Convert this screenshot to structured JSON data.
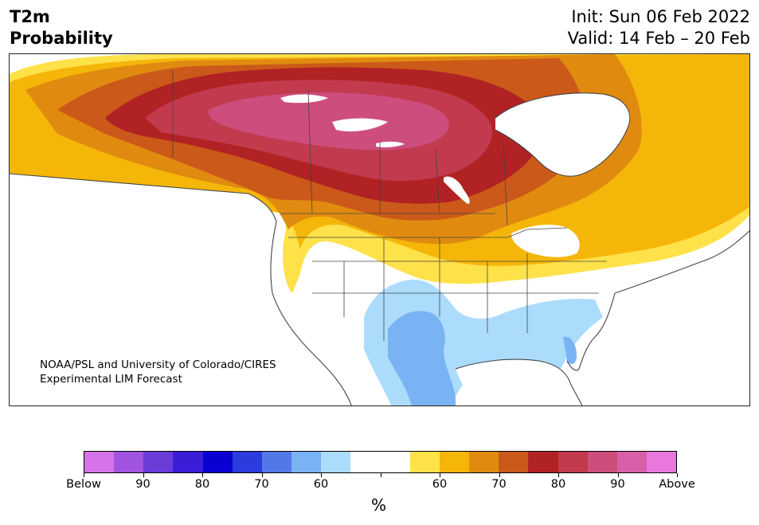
{
  "header": {
    "title_line1": "T2m",
    "title_line2": "Probability",
    "init": "Init: Sun 06 Feb 2022",
    "valid": "Valid: 14 Feb – 20 Feb"
  },
  "map": {
    "credit_line1": "NOAA/PSL and University of Colorado/CIRES",
    "credit_line2": "Experimental LIM Forecast",
    "region": "North America",
    "categories_shown": {
      "above": [
        "60",
        "70",
        "80",
        "90"
      ],
      "below": [
        "60",
        "70"
      ]
    }
  },
  "colorbar": {
    "colors": [
      "#d673e8",
      "#a054e0",
      "#6a3cd8",
      "#3a1dd6",
      "#0a00d2",
      "#2a3cdc",
      "#5277e6",
      "#7ab3f4",
      "#acdcfc",
      "#ffffff",
      "#ffffff",
      "#ffe14a",
      "#f5b60a",
      "#e08b10",
      "#cb5919",
      "#b12224",
      "#c23a4e",
      "#cd4e7d",
      "#d95ea8",
      "#e878dc"
    ],
    "labels": [
      "Below",
      "90",
      "80",
      "70",
      "60",
      "60",
      "70",
      "80",
      "90",
      "Above"
    ],
    "unit": "%"
  }
}
